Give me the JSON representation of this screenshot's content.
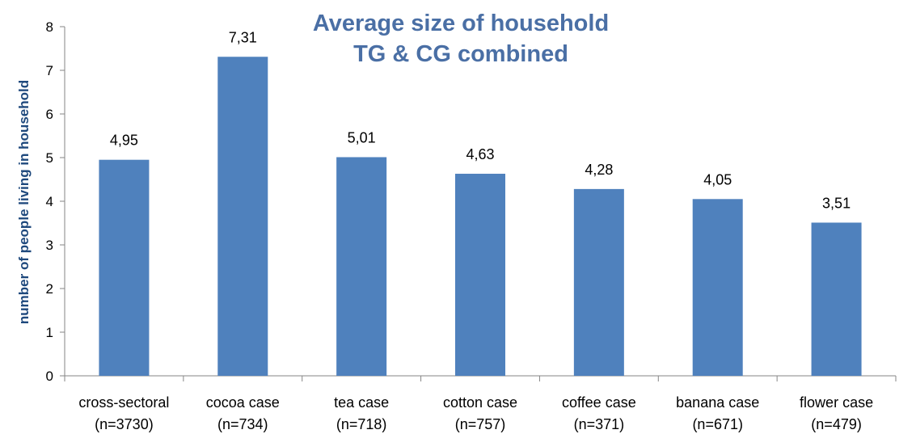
{
  "chart_data": {
    "type": "bar",
    "title": "Average size of household",
    "subtitle": "TG & CG combined",
    "ylabel": "number of people living in household",
    "xlabel": "",
    "ylim": [
      0,
      8
    ],
    "yticks": [
      0,
      1,
      2,
      3,
      4,
      5,
      6,
      7,
      8
    ],
    "grid": false,
    "legend": "none",
    "bar_color": "#4f81bd",
    "categories": [
      {
        "name": "cross-sectoral",
        "n": "(n=3730)"
      },
      {
        "name": "cocoa case",
        "n": "(n=734)"
      },
      {
        "name": "tea case",
        "n": "(n=718)"
      },
      {
        "name": "cotton case",
        "n": "(n=757)"
      },
      {
        "name": "coffee case",
        "n": "(n=371)"
      },
      {
        "name": "banana case",
        "n": "(n=671)"
      },
      {
        "name": "flower case",
        "n": "(n=479)"
      }
    ],
    "values": [
      4.95,
      7.31,
      5.01,
      4.63,
      4.28,
      4.05,
      3.51
    ],
    "value_labels": [
      "4,95",
      "7,31",
      "5,01",
      "4,63",
      "4,28",
      "4,05",
      "3,51"
    ]
  }
}
